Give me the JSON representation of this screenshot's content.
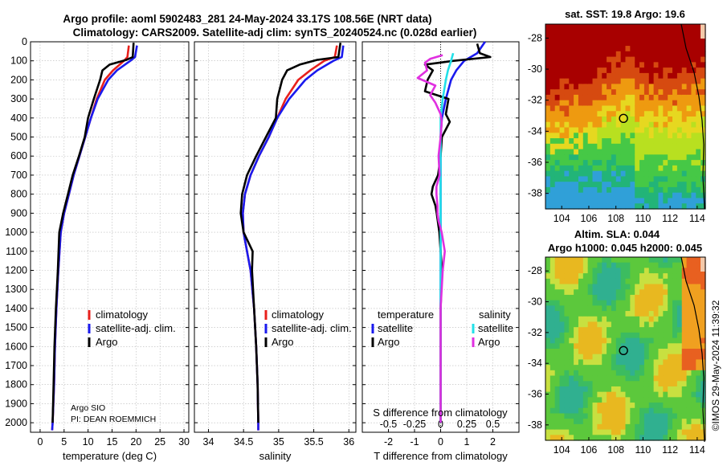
{
  "header": {
    "title_line1": "Argo profile: aoml 5902483_281 24-May-2024 33.17S 108.56E (NRT data)",
    "title_line2": "Climatology: CARS2009. Satellite-adj clim: synTS_20240524.nc (0.028d earlier)"
  },
  "credit": {
    "line1": "Argo SIO",
    "line2": "PI: DEAN ROEMMICH"
  },
  "watermark": "©IMOS 29-May-2024 11:39:32",
  "colors": {
    "climatology": "#e8201c",
    "satellite": "#1a1aee",
    "argo": "#000000",
    "satellite_salinity": "#22e0e8",
    "argo_salinity": "#e030e0"
  },
  "chart_data": [
    {
      "type": "line",
      "id": "temperature",
      "xlabel": "temperature (deg C)",
      "xlim": [
        -2,
        31
      ],
      "ylim": [
        2050,
        0
      ],
      "xticks": [
        "0",
        "5",
        "10",
        "15",
        "20",
        "25",
        "30"
      ],
      "xtick_values": [
        0,
        5,
        10,
        15,
        20,
        25,
        30
      ],
      "yticks": [
        "0",
        "100",
        "200",
        "300",
        "400",
        "500",
        "600",
        "700",
        "800",
        "900",
        "1000",
        "1100",
        "1200",
        "1300",
        "1400",
        "1500",
        "1600",
        "1700",
        "1800",
        "1900",
        "2000"
      ],
      "ytick_values": [
        0,
        100,
        200,
        300,
        400,
        500,
        600,
        700,
        800,
        900,
        1000,
        1100,
        1200,
        1300,
        1400,
        1500,
        1600,
        1700,
        1800,
        1900,
        2000
      ],
      "legend": [
        "climatology",
        "satellite-adj. clim.",
        "Argo"
      ],
      "series": [
        {
          "name": "climatology",
          "depth": [
            20,
            80,
            100,
            150,
            200,
            300,
            400,
            500,
            600,
            700,
            800,
            900,
            1000,
            1200,
            1400,
            1600,
            1800,
            2000,
            2040
          ],
          "values": [
            18.5,
            18.2,
            17.5,
            15.2,
            13.5,
            11.8,
            10.6,
            9.4,
            8.2,
            7.0,
            6.0,
            5.0,
            4.3,
            3.8,
            3.4,
            3.1,
            2.9,
            2.6,
            2.5
          ]
        },
        {
          "name": "satellite-adj. clim.",
          "depth": [
            20,
            80,
            100,
            150,
            200,
            300,
            400,
            500,
            600,
            700,
            800,
            900,
            1000,
            1200,
            1400,
            1600,
            1800,
            2000,
            2040
          ],
          "values": [
            20.2,
            19.8,
            18.8,
            16.0,
            14.2,
            12.0,
            10.6,
            9.4,
            8.2,
            7.0,
            6.0,
            5.0,
            4.3,
            3.8,
            3.4,
            3.1,
            2.9,
            2.6,
            2.5
          ]
        },
        {
          "name": "Argo",
          "depth": [
            5,
            80,
            95,
            120,
            150,
            200,
            300,
            400,
            500,
            600,
            700,
            800,
            900,
            1000,
            1200,
            1400,
            1600,
            1800,
            2000
          ],
          "values": [
            19.5,
            19.3,
            18.0,
            14.5,
            13.0,
            12.5,
            11.2,
            10.0,
            9.3,
            8.1,
            6.8,
            5.8,
            4.8,
            4.0,
            3.7,
            3.3,
            3.0,
            2.8,
            2.6
          ]
        }
      ]
    },
    {
      "type": "line",
      "id": "salinity",
      "xlabel": "salinity",
      "xlim": [
        33.8,
        36.1
      ],
      "ylim": [
        2050,
        0
      ],
      "xticks": [
        "34",
        "34.5",
        "35",
        "35.5",
        "36"
      ],
      "xtick_values": [
        34,
        34.5,
        35,
        35.5,
        36
      ],
      "legend": [
        "climatology",
        "satellite-adj. clim.",
        "Argo"
      ],
      "series": [
        {
          "name": "climatology",
          "depth": [
            20,
            80,
            100,
            150,
            200,
            300,
            400,
            500,
            600,
            700,
            800,
            900,
            1000,
            1100,
            1200,
            1400,
            1600,
            1800,
            2000,
            2040
          ],
          "values": [
            35.83,
            35.8,
            35.65,
            35.45,
            35.28,
            35.1,
            34.98,
            34.86,
            34.72,
            34.6,
            34.52,
            34.49,
            34.5,
            34.55,
            34.6,
            34.65,
            34.68,
            34.7,
            34.71,
            34.71
          ]
        },
        {
          "name": "satellite-adj. clim.",
          "depth": [
            20,
            80,
            100,
            150,
            200,
            300,
            400,
            500,
            600,
            700,
            800,
            900,
            1000,
            1100,
            1200,
            1400,
            1600,
            1800,
            2000,
            2040
          ],
          "values": [
            35.92,
            35.9,
            35.78,
            35.55,
            35.38,
            35.15,
            34.98,
            34.86,
            34.72,
            34.6,
            34.52,
            34.49,
            34.5,
            34.55,
            34.6,
            34.65,
            34.68,
            34.7,
            34.71,
            34.71
          ]
        },
        {
          "name": "Argo",
          "depth": [
            5,
            80,
            95,
            120,
            150,
            200,
            300,
            400,
            500,
            600,
            700,
            800,
            900,
            1000,
            1100,
            1200,
            1400,
            1600,
            1800,
            2000
          ],
          "values": [
            35.88,
            35.85,
            35.55,
            35.3,
            35.12,
            35.05,
            34.98,
            34.96,
            34.82,
            34.68,
            34.55,
            34.48,
            34.46,
            34.5,
            34.63,
            34.62,
            34.65,
            34.68,
            34.7,
            34.71
          ]
        }
      ]
    },
    {
      "type": "line",
      "id": "difference",
      "xlabel": "T difference from climatology",
      "xlabel_top": "S difference from climatology",
      "xlim": [
        -3,
        3
      ],
      "ylim": [
        2050,
        0
      ],
      "xticks": [
        "-2",
        "-1",
        "0",
        "1",
        "2"
      ],
      "xtick_values": [
        -2,
        -1,
        0,
        1,
        2
      ],
      "s_ticks": [
        "-0.5",
        "-0.25",
        "0",
        "0.25",
        "0.5"
      ],
      "s_tick_values": [
        -0.5,
        -0.25,
        0,
        0.25,
        0.5
      ],
      "legend_left_title": "temperature",
      "legend_right_title": "salinity",
      "legend_left": [
        "satellite",
        "Argo"
      ],
      "legend_right": [
        "satellite",
        "Argo"
      ],
      "series": [
        {
          "name": "T satellite",
          "depth": [
            0,
            60,
            100,
            150,
            200,
            300,
            400,
            500,
            700,
            900,
            1100,
            1400,
            1700,
            2000
          ],
          "values": [
            1.7,
            1.4,
            0.9,
            0.6,
            0.4,
            0.2,
            0.05,
            0.0,
            0.0,
            0.0,
            0.0,
            0.0,
            0.0,
            0.0
          ]
        },
        {
          "name": "T Argo",
          "depth": [
            10,
            60,
            80,
            100,
            120,
            150,
            200,
            260,
            300,
            380,
            420,
            500,
            600,
            700,
            760,
            800,
            860,
            900,
            1000,
            1100,
            1200,
            1400,
            1700,
            2000
          ],
          "values": [
            1.4,
            1.5,
            1.9,
            0.5,
            -0.6,
            -0.3,
            -0.5,
            -0.6,
            0.3,
            0.2,
            0.35,
            0.05,
            0.0,
            -0.1,
            -0.3,
            -0.35,
            -0.2,
            -0.15,
            -0.05,
            0.0,
            0.05,
            0.0,
            0.0,
            0.0
          ]
        },
        {
          "name": "S satellite",
          "depth": [
            60,
            100,
            150,
            200,
            300,
            400,
            600,
            800,
            1000,
            1500,
            2000
          ],
          "values": [
            0.12,
            0.1,
            0.07,
            0.05,
            0.02,
            0.0,
            0.0,
            0.0,
            0.0,
            0.0,
            0.0
          ]
        },
        {
          "name": "S Argo",
          "depth": [
            70,
            90,
            110,
            150,
            190,
            230,
            280,
            320,
            380,
            420,
            500,
            600,
            700,
            760,
            800,
            860,
            900,
            940,
            1000,
            1100,
            1200,
            1400,
            1700,
            2000
          ],
          "values": [
            0.02,
            -0.1,
            -0.15,
            -0.13,
            -0.22,
            -0.05,
            -0.1,
            -0.05,
            0.0,
            0.01,
            0.0,
            -0.02,
            -0.01,
            -0.04,
            -0.04,
            -0.03,
            -0.03,
            -0.02,
            0.01,
            0.04,
            0.02,
            0.0,
            0.0,
            0.0
          ]
        }
      ]
    },
    {
      "type": "heatmap",
      "id": "sst-map",
      "title": "sat. SST: 19.8 Argo: 19.6",
      "xticks": [
        "104",
        "106",
        "108",
        "110",
        "112",
        "114"
      ],
      "xtick_values": [
        104,
        106,
        108,
        110,
        112,
        114
      ],
      "yticks": [
        "-28",
        "-30",
        "-32",
        "-34",
        "-36",
        "-38"
      ],
      "ytick_values": [
        -28,
        -30,
        -32,
        -34,
        -36,
        -38
      ],
      "xlim": [
        102.8,
        114.6
      ],
      "ylim": [
        -39.0,
        -27.1
      ],
      "marker": {
        "lon": 108.56,
        "lat": -33.17
      }
    },
    {
      "type": "heatmap",
      "id": "sla-map",
      "title_line1": "Altim. SLA: 0.044",
      "title_line2": "Argo h1000: 0.045 h2000: 0.045",
      "xticks": [
        "104",
        "106",
        "108",
        "110",
        "112",
        "114"
      ],
      "xtick_values": [
        104,
        106,
        108,
        110,
        112,
        114
      ],
      "yticks": [
        "-28",
        "-30",
        "-32",
        "-34",
        "-36",
        "-38"
      ],
      "ytick_values": [
        -28,
        -30,
        -32,
        -34,
        -36,
        -38
      ],
      "xlim": [
        102.8,
        114.6
      ],
      "ylim": [
        -39.0,
        -27.1
      ],
      "marker": {
        "lon": 108.56,
        "lat": -33.17
      }
    }
  ]
}
